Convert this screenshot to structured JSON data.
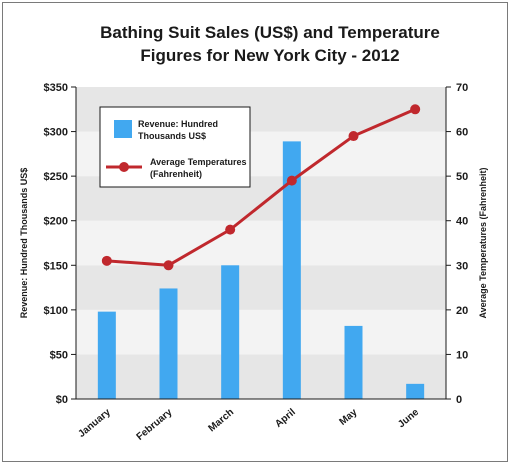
{
  "chart_data": {
    "type": "bar-line",
    "title_line1": "Bathing Suit Sales (US$) and Temperature",
    "title_line2": "Figures for New York City - 2012",
    "categories": [
      "January",
      "February",
      "March",
      "April",
      "May",
      "June"
    ],
    "series": [
      {
        "name": "Revenue: Hundred Thousands US$",
        "type": "bar",
        "axis": "left",
        "color": "#41a8f0",
        "values": [
          98,
          124,
          150,
          289,
          82,
          17
        ]
      },
      {
        "name": "Average Temperatures (Fahrenheit)",
        "type": "line",
        "axis": "right",
        "color": "#c0282d",
        "values": [
          31,
          30,
          38,
          49,
          59,
          65
        ]
      }
    ],
    "y_left": {
      "label": "Revenue: Hundred Thousands US$",
      "ylim": [
        0,
        350
      ],
      "ticks": [
        0,
        50,
        100,
        150,
        200,
        250,
        300,
        350
      ],
      "tick_labels": [
        "$0",
        "$50",
        "$100",
        "$150",
        "$200",
        "$250",
        "$300",
        "$350"
      ]
    },
    "y_right": {
      "label": "Average Temperatures (Fahrenheit)",
      "ylim": [
        0,
        70
      ],
      "ticks": [
        0,
        10,
        20,
        30,
        40,
        50,
        60,
        70
      ],
      "tick_labels": [
        "0",
        "10",
        "20",
        "30",
        "40",
        "50",
        "60",
        "70"
      ]
    },
    "legend": {
      "placement": "top-left",
      "bar_label_line1": "Revenue: Hundred",
      "bar_label_line2": "Thousands US$",
      "line_label_line1": "Average Temperatures",
      "line_label_line2": "(Fahrenheit)"
    },
    "grid": "alternating-bands",
    "band_colors": [
      "#e6e6e6",
      "#f3f3f3"
    ]
  }
}
